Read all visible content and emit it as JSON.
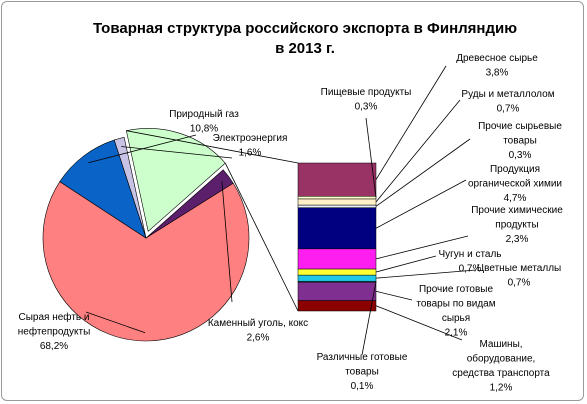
{
  "chart_data": {
    "type": "pie",
    "title_lines": [
      "Товарная структура российского экспорта в Финляндию",
      "в 2013 г."
    ],
    "pie": [
      {
        "key": "electricity",
        "label_lines": [
          "Электроэнергия",
          "1,6%"
        ],
        "value": 1.6,
        "color": "#c8c3e4"
      },
      {
        "key": "other",
        "label_lines": [],
        "value": 16.9,
        "color": "#ccffcc",
        "exploded": true
      },
      {
        "key": "coal",
        "label_lines": [
          "Каменный уголь, кокс",
          "2,6%"
        ],
        "value": 2.6,
        "color": "#5c1f6b"
      },
      {
        "key": "oil",
        "label_lines": [
          "Сырая нефть и",
          "нефтепродукты",
          "68,2%"
        ],
        "value": 68.2,
        "color": "#ff8080"
      },
      {
        "key": "gas",
        "label_lines": [
          "Природный газ",
          "10,8%"
        ],
        "value": 10.8,
        "color": "#0a64c8"
      }
    ],
    "bar": [
      {
        "key": "machinery",
        "label_lines": [
          "Машины,",
          "оборудование,",
          "средства транспорта",
          "1,2%"
        ],
        "value": 1.2,
        "color": "#8b0000"
      },
      {
        "key": "other-finished-materials",
        "label_lines": [
          "Прочие готовые",
          "товары по видам",
          "сырья",
          "2,1%"
        ],
        "value": 2.1,
        "color": "#7f2f8f"
      },
      {
        "key": "misc-finished",
        "label_lines": [
          "Различные готовые",
          "товары",
          "0,1%"
        ],
        "value": 0.1,
        "color": "#008080"
      },
      {
        "key": "non-ferrous",
        "label_lines": [
          "Цветные металлы",
          "0,7%"
        ],
        "value": 0.7,
        "color": "#1ec8e6"
      },
      {
        "key": "iron-steel",
        "label_lines": [
          "Чугун и сталь",
          "0,7%"
        ],
        "value": 0.7,
        "color": "#ffff33"
      },
      {
        "key": "other-chemicals",
        "label_lines": [
          "Прочие химические",
          "продукты",
          "2,3%"
        ],
        "value": 2.3,
        "color": "#ff1ef0"
      },
      {
        "key": "organic-chemistry",
        "label_lines": [
          "Продукция",
          "органической химии",
          "4,7%"
        ],
        "value": 4.7,
        "color": "#000080"
      },
      {
        "key": "other-raw",
        "label_lines": [
          "Прочие сырьевые",
          "товары",
          "0,3%"
        ],
        "value": 0.3,
        "color": "#e6f0ff"
      },
      {
        "key": "ores-scrap",
        "label_lines": [
          "Руды и металлолом",
          "0,7%"
        ],
        "value": 0.7,
        "color": "#fff0c8"
      },
      {
        "key": "food",
        "label_lines": [
          "Пищевые продукты",
          "0,3%"
        ],
        "value": 0.3,
        "color": "#ffffcc"
      },
      {
        "key": "wood",
        "label_lines": [
          "Древесное сырье",
          "3,8%"
        ],
        "value": 3.8,
        "color": "#993366"
      }
    ]
  }
}
